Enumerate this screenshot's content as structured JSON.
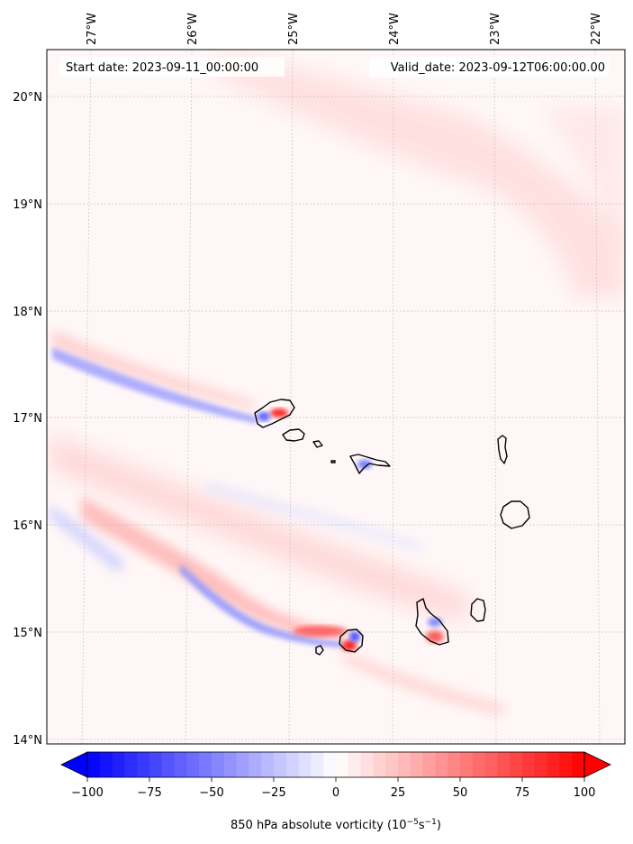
{
  "annotations": {
    "start_date": "Start date: 2023-09-11_00:00:00",
    "valid_date": "Valid_date: 2023-09-12T06:00:00.00"
  },
  "map": {
    "type": "filled-contour-map",
    "lon_ticks": [
      "27°W",
      "26°W",
      "25°W",
      "24°W",
      "23°W",
      "22°W"
    ],
    "lat_ticks": [
      "20°N",
      "19°N",
      "18°N",
      "17°N",
      "16°N",
      "15°N",
      "14°N"
    ],
    "gridlines": true,
    "features": [
      "coastlines"
    ],
    "colormap": "bwr",
    "colors": {
      "negative": "#0000ff",
      "zero": "#ffffff",
      "positive": "#ff0000"
    }
  },
  "colorbar": {
    "ticks": [
      "−100",
      "−75",
      "−50",
      "−25",
      "0",
      "25",
      "50",
      "75",
      "100"
    ],
    "tick_values": [
      -100,
      -75,
      -50,
      -25,
      0,
      25,
      50,
      75,
      100
    ],
    "range": [
      -100,
      100
    ],
    "extend": "both",
    "levels": 40,
    "label": "850 hPa absolute vorticity (10",
    "label_exp1": "−5",
    "label_mid": "s",
    "label_exp2": "−1",
    "label_end": ")"
  }
}
